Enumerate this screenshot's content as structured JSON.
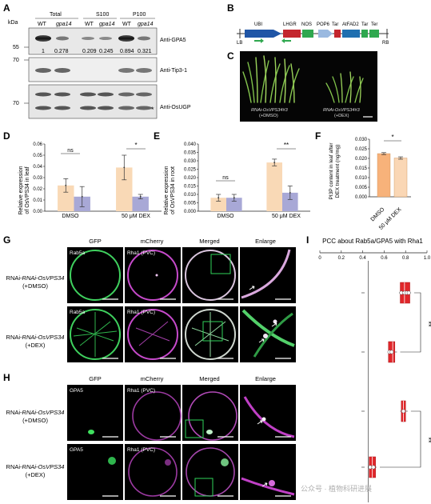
{
  "panels": {
    "A": {
      "letter": "A",
      "unit": "kDa",
      "groups": [
        "Total",
        "S100",
        "P100"
      ],
      "lanes": [
        "WT",
        "gpa14",
        "WT",
        "gpa14",
        "WT",
        "gpa14"
      ],
      "markers": [
        "55",
        "70",
        "70"
      ],
      "quant": [
        "1",
        "0.278",
        "0.209",
        "0.245",
        "0.894",
        "0.321"
      ],
      "blots": [
        "Anti-GPA5",
        "Anti-Tip3-1",
        "Anti-OsUGP"
      ],
      "asterisk": "*"
    },
    "B": {
      "letter": "B",
      "elements": [
        "UBI",
        "LHGR",
        "NOS",
        "POP6",
        "Tar",
        "AtFAD2",
        "Tar",
        "Ter"
      ],
      "borders": [
        "LB",
        "RB"
      ]
    },
    "C": {
      "letter": "C",
      "left_label": "RNAi-OsVPS34#3",
      "left_treat": "(+DMSO)",
      "right_label": "RNAi-OsVPS34#3",
      "right_treat": "(+DEX)"
    },
    "D": {
      "letter": "D",
      "ylabel_line1": "Relative expression",
      "ylabel_line2": "of OsVPS34 in leaf",
      "groups": [
        "DMSO",
        "50 μM DEX"
      ],
      "sig": [
        "ns",
        "*"
      ],
      "chart_data": {
        "type": "bar",
        "categories": [
          "DMSO",
          "50 μM DEX"
        ],
        "series": [
          {
            "values": [
              0.023,
              0.039
            ],
            "errors": [
              0.006,
              0.011
            ],
            "color": "#f9d9b6"
          },
          {
            "values": [
              0.013,
              0.013
            ],
            "errors": [
              0.009,
              0.002
            ],
            "color": "#a8a8d6"
          }
        ],
        "yticks": [
          "0.00",
          "0.01",
          "0.02",
          "0.03",
          "0.04",
          "0.05",
          "0.06"
        ],
        "ylim": [
          0,
          0.06
        ]
      }
    },
    "E": {
      "letter": "E",
      "ylabel_line1": "Relative expression",
      "ylabel_line2": "of OsVPS34 in root",
      "groups": [
        "DMSO",
        "50 μM DEX"
      ],
      "sig": [
        "ns",
        "**"
      ],
      "chart_data": {
        "type": "bar",
        "categories": [
          "DMSO",
          "50 μM DEX"
        ],
        "series": [
          {
            "values": [
              0.008,
              0.029
            ],
            "errors": [
              0.002,
              0.002
            ],
            "color": "#f9d9b6"
          },
          {
            "values": [
              0.008,
              0.011
            ],
            "errors": [
              0.002,
              0.004
            ],
            "color": "#a8a8d6"
          }
        ],
        "yticks": [
          "0.000",
          "0.005",
          "0.010",
          "0.015",
          "0.020",
          "0.025",
          "0.030",
          "0.035",
          "0.040"
        ],
        "ylim": [
          0,
          0.04
        ]
      }
    },
    "F": {
      "letter": "F",
      "ylabel_line1": "PI3P content in leaf after",
      "ylabel_line2": "DEX treatment (ng/mg)",
      "groups": [
        "DMSO",
        "50 μM DEX"
      ],
      "sig": "*",
      "chart_data": {
        "type": "bar",
        "categories": [
          "DMSO",
          "50 μM DEX"
        ],
        "values": [
          0.0225,
          0.0202
        ],
        "errors": [
          0.0005,
          0.0006
        ],
        "colors": [
          "#f7b27a",
          "#fad7b5"
        ],
        "yticks": [
          "0.000",
          "0.005",
          "0.010",
          "0.015",
          "0.020",
          "0.025",
          "0.030"
        ],
        "ylim": [
          0,
          0.03
        ]
      }
    },
    "G": {
      "letter": "G",
      "cols": [
        "GFP",
        "mCherry",
        "Merged",
        "Enlarge"
      ],
      "rows": [
        {
          "name": "RNAi-OsVPS34",
          "treat": "(+DMSO)",
          "gfp": "Rab5a",
          "mch": "Rha1 (PVC)"
        },
        {
          "name": "RNAi-OsVPS34",
          "treat": "(+DEX)",
          "gfp": "Rab5a",
          "mch": "Rha1 (PVC)"
        }
      ]
    },
    "H": {
      "letter": "H",
      "cols": [
        "GFP",
        "mCherry",
        "Merged",
        "Enlarge"
      ],
      "rows": [
        {
          "name": "RNAi-OsVPS34",
          "treat": "(+DMSO)",
          "gfp": "GPA5",
          "mch": "Rha1 (PVC)"
        },
        {
          "name": "RNAi-OsVPS34",
          "treat": "(+DEX)",
          "gfp": "GPA5",
          "mch": "Rha1 (PVC)"
        }
      ]
    },
    "I": {
      "letter": "I",
      "title": "PCC about Rab5a/GPA5 with Rha1",
      "sig": [
        "**",
        "**"
      ],
      "chart_data": {
        "type": "box",
        "xticks": [
          "0",
          "0.2",
          "0.4",
          "0.6",
          "0.8",
          "1.0"
        ],
        "xlim": [
          0,
          1
        ],
        "boxes": [
          {
            "min": 0.74,
            "q1": 0.75,
            "median": 0.79,
            "q3": 0.84,
            "max": 0.85,
            "points": [
              0.76,
              0.79,
              0.81,
              0.83
            ]
          },
          {
            "min": 0.64,
            "q1": 0.64,
            "median": 0.68,
            "q3": 0.7,
            "max": 0.72,
            "points": [
              0.65,
              0.67
            ]
          },
          {
            "min": 0.75,
            "q1": 0.76,
            "median": 0.78,
            "q3": 0.8,
            "max": 0.82,
            "points": [
              0.78
            ]
          },
          {
            "min": 0.46,
            "q1": 0.46,
            "median": 0.49,
            "q3": 0.52,
            "max": 0.53,
            "points": [
              0.47,
              0.5
            ]
          }
        ],
        "color": "#e0262a"
      }
    }
  },
  "watermark": "公众号 · 植物科研进展"
}
